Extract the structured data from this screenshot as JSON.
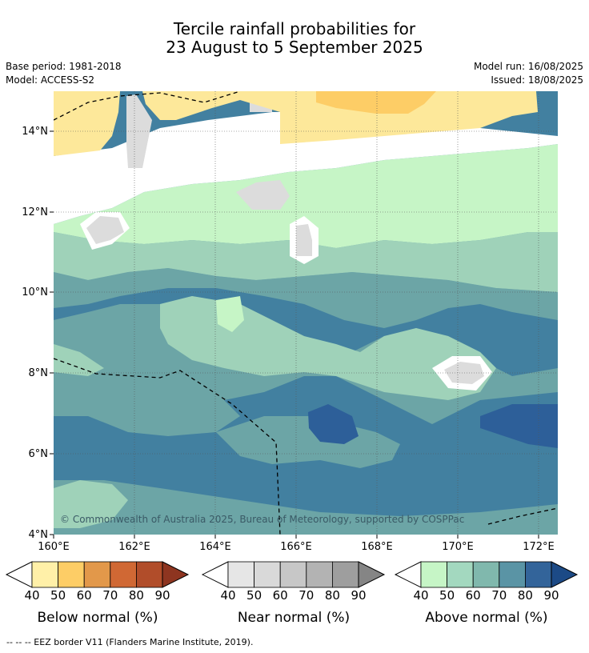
{
  "title": {
    "line1": "Tercile rainfall probabilities for",
    "line2": "23 August to 5 September 2025"
  },
  "meta": {
    "base_period": "Base period: 1981-2018",
    "model": "Model: ACCESS-S2",
    "model_run": "Model run: 16/08/2025",
    "issued": "Issued: 18/08/2025"
  },
  "map": {
    "lat_labels": [
      "14°N",
      "12°N",
      "10°N",
      "8°N",
      "6°N",
      "4°N"
    ],
    "lon_labels": [
      "160°E",
      "162°E",
      "164°E",
      "166°E",
      "168°E",
      "170°E",
      "172°E"
    ],
    "lon_range": [
      160,
      172.5
    ],
    "lat_range": [
      4,
      15
    ],
    "copyright": "© Commonwealth of Australia 2025, Bureau of Meteorology, supported by COSPPac",
    "colors": {
      "above_50": "#c6f5c6",
      "above_60": "#9fd2b9",
      "above_70": "#6ca5a6",
      "above_80": "#4280a0",
      "above_90": "#2d5f99",
      "below_50": "#fde89a",
      "below_60": "#fdcd66",
      "near_50": "#dcdcdc",
      "blank": "#ffffff"
    }
  },
  "colorbars": [
    {
      "label": "Below normal (%)",
      "ticks": [
        "40",
        "50",
        "60",
        "70",
        "80",
        "90"
      ],
      "colors": [
        "#fff0a8",
        "#fdcd66",
        "#e2984a",
        "#d06834",
        "#b14d2a",
        "#8e3520"
      ]
    },
    {
      "label": "Near normal (%)",
      "ticks": [
        "40",
        "50",
        "60",
        "70",
        "80",
        "90"
      ],
      "colors": [
        "#e6e6e6",
        "#d9d9d9",
        "#c7c7c7",
        "#b3b3b3",
        "#9e9e9e",
        "#858585"
      ]
    },
    {
      "label": "Above normal (%)",
      "ticks": [
        "40",
        "50",
        "60",
        "70",
        "80",
        "90"
      ],
      "colors": [
        "#c6f5c6",
        "#a3d8bf",
        "#80b8ad",
        "#5a94a5",
        "#33649a",
        "#1c4a86"
      ]
    }
  ],
  "footnote": "-- -- -- EEZ border V11 (Flanders Marine Institute, 2019)."
}
